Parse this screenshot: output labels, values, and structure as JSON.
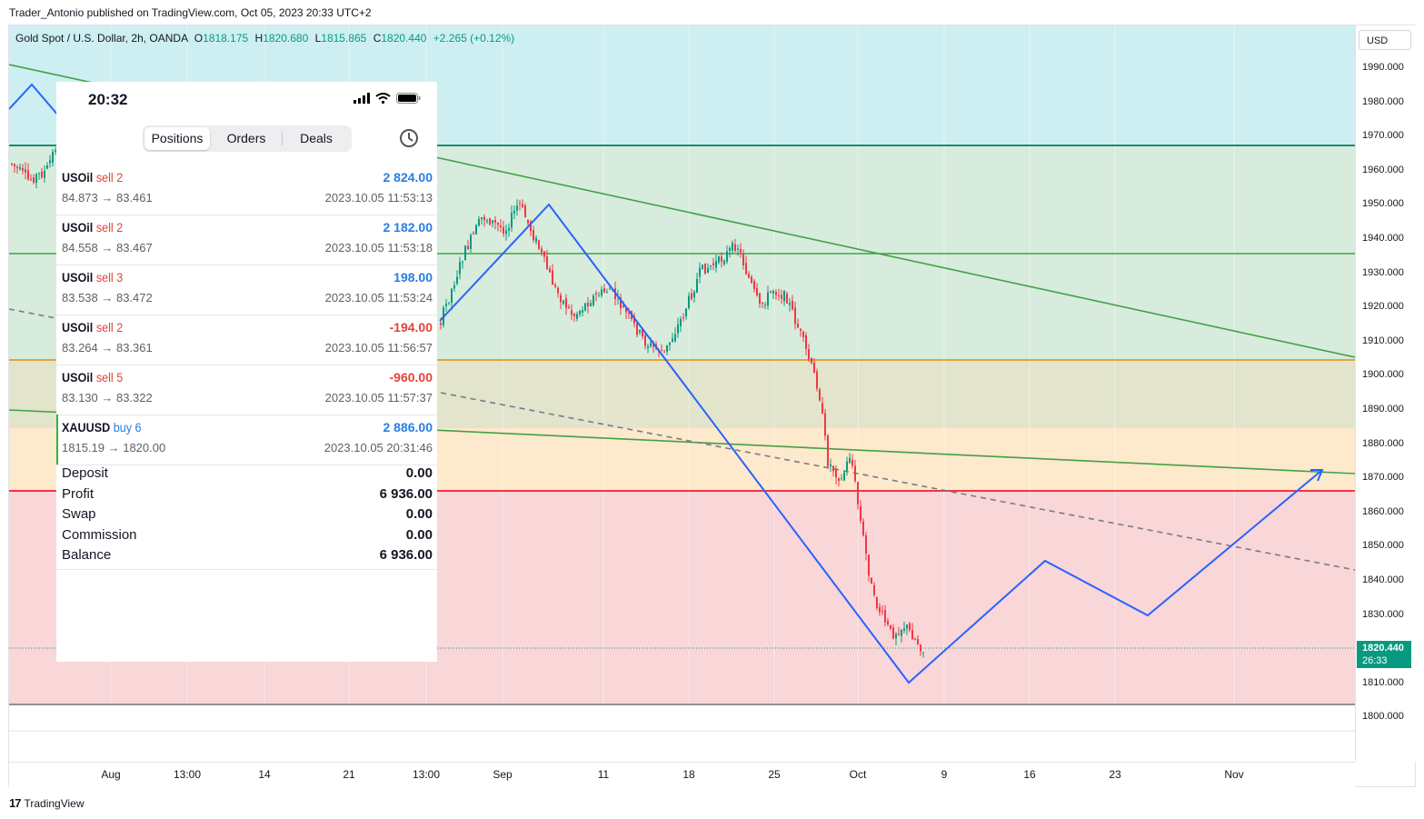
{
  "publish_line": "Trader_Antonio published on TradingView.com, Oct 05, 2023 20:33 UTC+2",
  "legend": {
    "symbol": "Gold Spot / U.S. Dollar, 2h, OANDA",
    "o_label": "O",
    "o": "1818.175",
    "h_label": "H",
    "h": "1820.680",
    "l_label": "L",
    "l": "1815.865",
    "c_label": "C",
    "c": "1820.440",
    "change": "+2.265 (+0.12%)"
  },
  "price_axis": {
    "currency": "USD",
    "ticks": [
      "1990.000",
      "1980.000",
      "1970.000",
      "1960.000",
      "1950.000",
      "1940.000",
      "1930.000",
      "1920.000",
      "1910.000",
      "1900.000",
      "1890.000",
      "1880.000",
      "1870.000",
      "1860.000",
      "1850.000",
      "1840.000",
      "1830.000",
      "1820.000",
      "1810.000",
      "1800.000"
    ],
    "current_price": "1820.440",
    "countdown": "26:33"
  },
  "time_axis": {
    "ticks": [
      "Aug",
      "13:00",
      "14",
      "21",
      "13:00",
      "Sep",
      "11",
      "18",
      "25",
      "Oct",
      "9",
      "16",
      "23",
      "Nov"
    ]
  },
  "footer": {
    "brand_mark": "17",
    "brand": "TradingView"
  },
  "colors": {
    "zone_cyan": "#cdeff2",
    "zone_green": "#d7ecdc",
    "zone_olive": "#e2e4cc",
    "zone_peach": "#fde9cc",
    "zone_pink": "#f9d6d8",
    "up": "#089981",
    "down": "#f23645",
    "projection": "#2962ff",
    "trend_green": "#43a047",
    "level_orange": "#e6a23c",
    "level_red": "#f23645"
  },
  "phone": {
    "time": "20:32",
    "tabs": [
      "Positions",
      "Orders",
      "Deals"
    ],
    "active_tab": "Positions",
    "positions": [
      {
        "symbol": "USOil",
        "side": "sell 2",
        "prices": "84.873 → 83.461",
        "profit": "2 824.00",
        "time": "2023.10.05 11:53:13"
      },
      {
        "symbol": "USOil",
        "side": "sell 2",
        "prices": "84.558 → 83.467",
        "profit": "2 182.00",
        "time": "2023.10.05 11:53:18"
      },
      {
        "symbol": "USOil",
        "side": "sell 3",
        "prices": "83.538 → 83.472",
        "profit": "198.00",
        "time": "2023.10.05 11:53:24"
      },
      {
        "symbol": "USOil",
        "side": "sell 2",
        "prices": "83.264 → 83.361",
        "profit": "-194.00",
        "time": "2023.10.05 11:56:57"
      },
      {
        "symbol": "USOil",
        "side": "sell 5",
        "prices": "83.130 → 83.322",
        "profit": "-960.00",
        "time": "2023.10.05 11:57:37"
      },
      {
        "symbol": "XAUUSD",
        "side": "buy 6",
        "prices": "1815.19 → 1820.00",
        "profit": "2 886.00",
        "time": "2023.10.05 20:31:46"
      }
    ],
    "summary": [
      {
        "label": "Deposit",
        "value": "0.00"
      },
      {
        "label": "Profit",
        "value": "6 936.00"
      },
      {
        "label": "Swap",
        "value": "0.00"
      },
      {
        "label": "Commission",
        "value": "0.00"
      },
      {
        "label": "Balance",
        "value": "6 936.00"
      }
    ]
  }
}
